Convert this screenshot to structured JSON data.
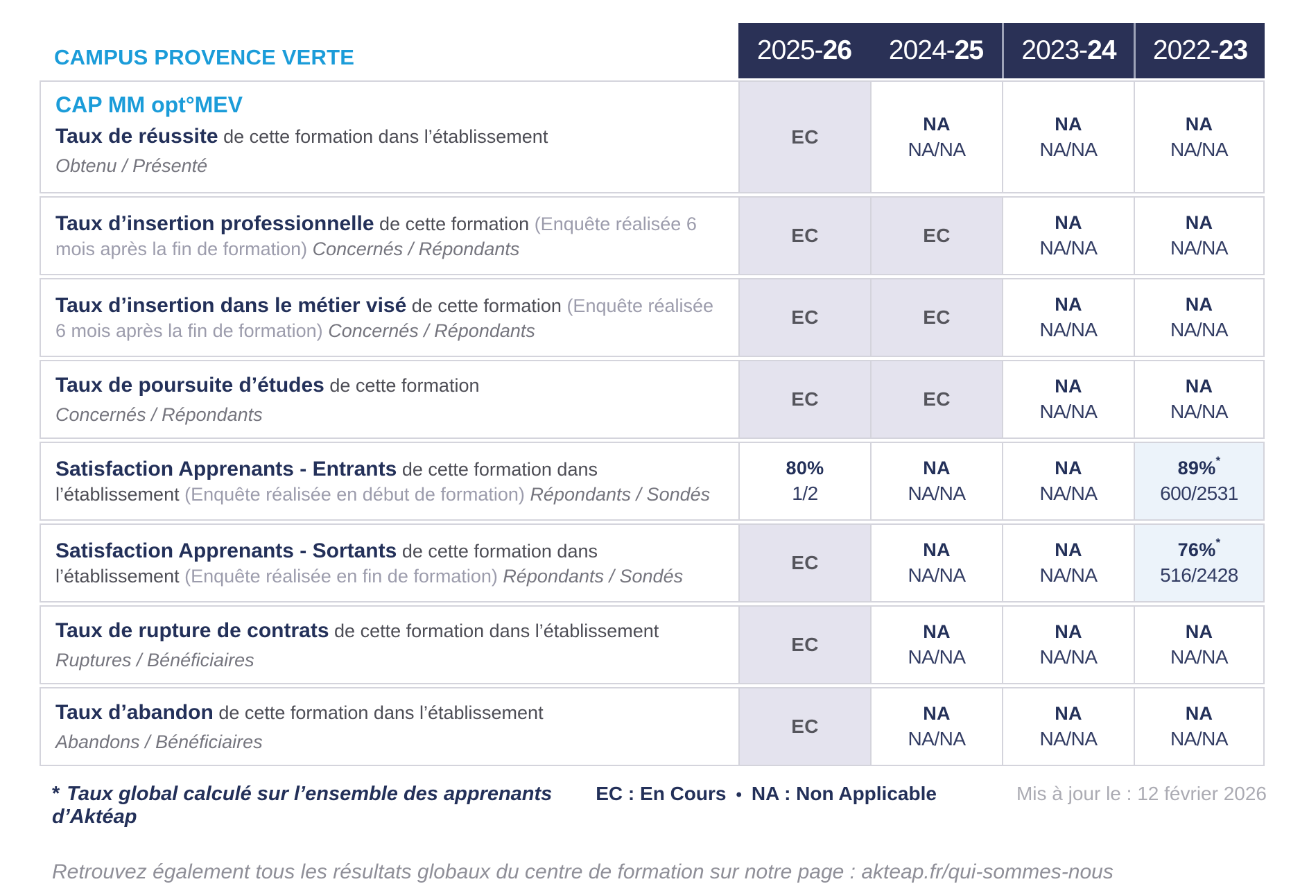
{
  "header": {
    "campus_title": "CAMPUS PROVENCE VERTE",
    "year_columns": [
      {
        "prefix": "2025-",
        "bold": "26"
      },
      {
        "prefix": "2024-",
        "bold": "25"
      },
      {
        "prefix": "2023-",
        "bold": "24"
      },
      {
        "prefix": "2022-",
        "bold": "23"
      }
    ]
  },
  "table": {
    "rows": [
      {
        "program_title": "CAP MM opt°MEV",
        "title": "Taux de réussite",
        "description": "de cette formation dans l’établissement",
        "ratio_label": "Obtenu / Présenté",
        "values": [
          {
            "main": "EC"
          },
          {
            "main": "NA",
            "sub": "NA/NA"
          },
          {
            "main": "NA",
            "sub": "NA/NA"
          },
          {
            "main": "NA",
            "sub": "NA/NA"
          }
        ]
      },
      {
        "title": "Taux d’insertion professionnelle",
        "description": "de cette formation",
        "note": "(Enquête réalisée 6 mois après la fin de formation)",
        "ratio_label": "Concernés / Répondants",
        "values": [
          {
            "main": "EC"
          },
          {
            "main": "EC"
          },
          {
            "main": "NA",
            "sub": "NA/NA"
          },
          {
            "main": "NA",
            "sub": "NA/NA"
          }
        ]
      },
      {
        "title": "Taux d’insertion dans le métier visé",
        "description": "de cette formation",
        "note": "(Enquête réalisée 6 mois après la fin de formation)",
        "ratio_label": "Concernés / Répondants",
        "values": [
          {
            "main": "EC"
          },
          {
            "main": "EC"
          },
          {
            "main": "NA",
            "sub": "NA/NA"
          },
          {
            "main": "NA",
            "sub": "NA/NA"
          }
        ]
      },
      {
        "title": "Taux de poursuite d’études",
        "description": "de cette formation",
        "ratio_label": "Concernés / Répondants",
        "values": [
          {
            "main": "EC"
          },
          {
            "main": "EC"
          },
          {
            "main": "NA",
            "sub": "NA/NA"
          },
          {
            "main": "NA",
            "sub": "NA/NA"
          }
        ]
      },
      {
        "title": "Satisfaction Apprenants - Entrants",
        "description": "de cette formation dans l’établissement",
        "note": "(Enquête réalisée en début de formation)",
        "ratio_label": "Répondants / Sondés",
        "values": [
          {
            "main": "80%",
            "sub": "1/2"
          },
          {
            "main": "NA",
            "sub": "NA/NA"
          },
          {
            "main": "NA",
            "sub": "NA/NA"
          },
          {
            "main": "89%",
            "star": "*",
            "sub": "600/2531"
          }
        ]
      },
      {
        "title": "Satisfaction Apprenants - Sortants",
        "description": "de cette formation dans l’établissement",
        "note": "(Enquête réalisée en fin de formation)",
        "ratio_label": "Répondants / Sondés",
        "values": [
          {
            "main": "EC"
          },
          {
            "main": "NA",
            "sub": "NA/NA"
          },
          {
            "main": "NA",
            "sub": "NA/NA"
          },
          {
            "main": "76%",
            "star": "*",
            "sub": "516/2428"
          }
        ]
      },
      {
        "title": "Taux de rupture de contrats",
        "description": "de cette formation dans l’établissement",
        "ratio_label": "Ruptures / Bénéficiaires",
        "values": [
          {
            "main": "EC"
          },
          {
            "main": "NA",
            "sub": "NA/NA"
          },
          {
            "main": "NA",
            "sub": "NA/NA"
          },
          {
            "main": "NA",
            "sub": "NA/NA"
          }
        ]
      },
      {
        "title": "Taux d’abandon",
        "description": "de cette formation dans l’établissement",
        "ratio_label": "Abandons / Bénéficiaires",
        "values": [
          {
            "main": "EC"
          },
          {
            "main": "NA",
            "sub": "NA/NA"
          },
          {
            "main": "NA",
            "sub": "NA/NA"
          },
          {
            "main": "NA",
            "sub": "NA/NA"
          }
        ]
      }
    ]
  },
  "footer": {
    "asterisk": "*",
    "asterisk_note": "Taux global calculé sur l’ensemble des apprenants d’Aktéap",
    "legend_ec": "EC : En Cours",
    "legend_sep": "•",
    "legend_na": "NA : Non Applicable",
    "updated": "Mis à jour le : 12 février 2026",
    "bottom_line": "Retrouvez également tous les résultats globaux du centre de formation sur notre page : akteap.fr/qui-sommes-nous"
  },
  "colors": {
    "accent_blue": "#1B9CD9",
    "navy": "#233059",
    "header_band": "#2A3156",
    "lavender_cell": "#E4E3EE",
    "light_blue_cell": "#ECF3FA",
    "border": "#D4D4DC"
  }
}
